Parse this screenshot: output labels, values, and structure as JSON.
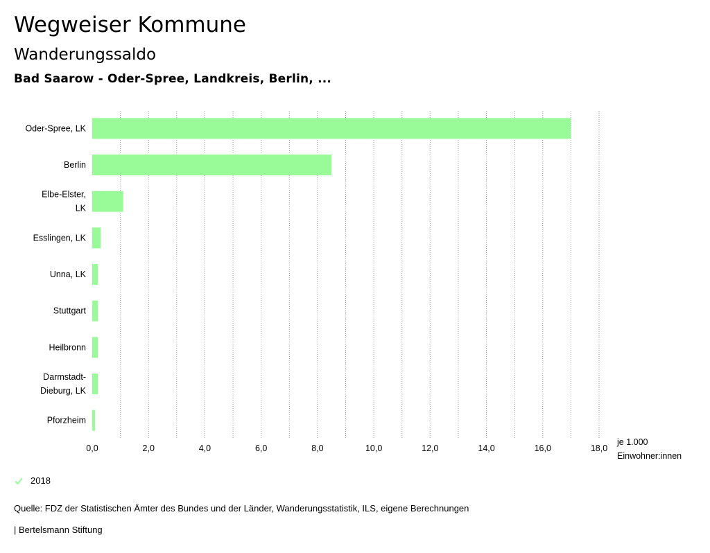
{
  "header": {
    "title": "Wegweiser Kommune",
    "subtitle": "Wanderungssaldo",
    "region": "Bad Saarow - Oder-Spree, Landkreis, Berlin, ..."
  },
  "legend": {
    "label": "2018",
    "color": "#98fb98"
  },
  "unit": {
    "line1": "je 1.000",
    "line2": "Einwohner:innen"
  },
  "footer": {
    "source": "Quelle: FDZ der Statistischen Ämter des Bundes und der Länder, Wanderungsstatistik, ILS, eigene Berechnungen",
    "publisher": "| Bertelsmann Stiftung"
  },
  "chart_data": {
    "type": "bar",
    "orientation": "horizontal",
    "title": "Wanderungssaldo",
    "xlabel": "je 1.000 Einwohner:innen",
    "ylabel": "",
    "xlim": [
      0,
      18
    ],
    "ticks": [
      "0,0",
      "2,0",
      "4,0",
      "6,0",
      "8,0",
      "10,0",
      "12,0",
      "14,0",
      "16,0",
      "18,0"
    ],
    "tick_values": [
      0,
      2,
      4,
      6,
      8,
      10,
      12,
      14,
      16,
      18
    ],
    "grid": true,
    "categories": [
      [
        "Oder-Spree, LK"
      ],
      [
        "Berlin"
      ],
      [
        "Elbe-Elster,",
        "LK"
      ],
      [
        "Esslingen, LK"
      ],
      [
        "Unna, LK"
      ],
      [
        "Stuttgart"
      ],
      [
        "Heilbronn"
      ],
      [
        "Darmstadt-",
        "Dieburg, LK"
      ],
      [
        "Pforzheim"
      ]
    ],
    "series": [
      {
        "name": "2018",
        "color": "#98fb98",
        "values": [
          17.0,
          8.5,
          1.1,
          0.3,
          0.2,
          0.2,
          0.2,
          0.2,
          0.1
        ]
      }
    ]
  }
}
